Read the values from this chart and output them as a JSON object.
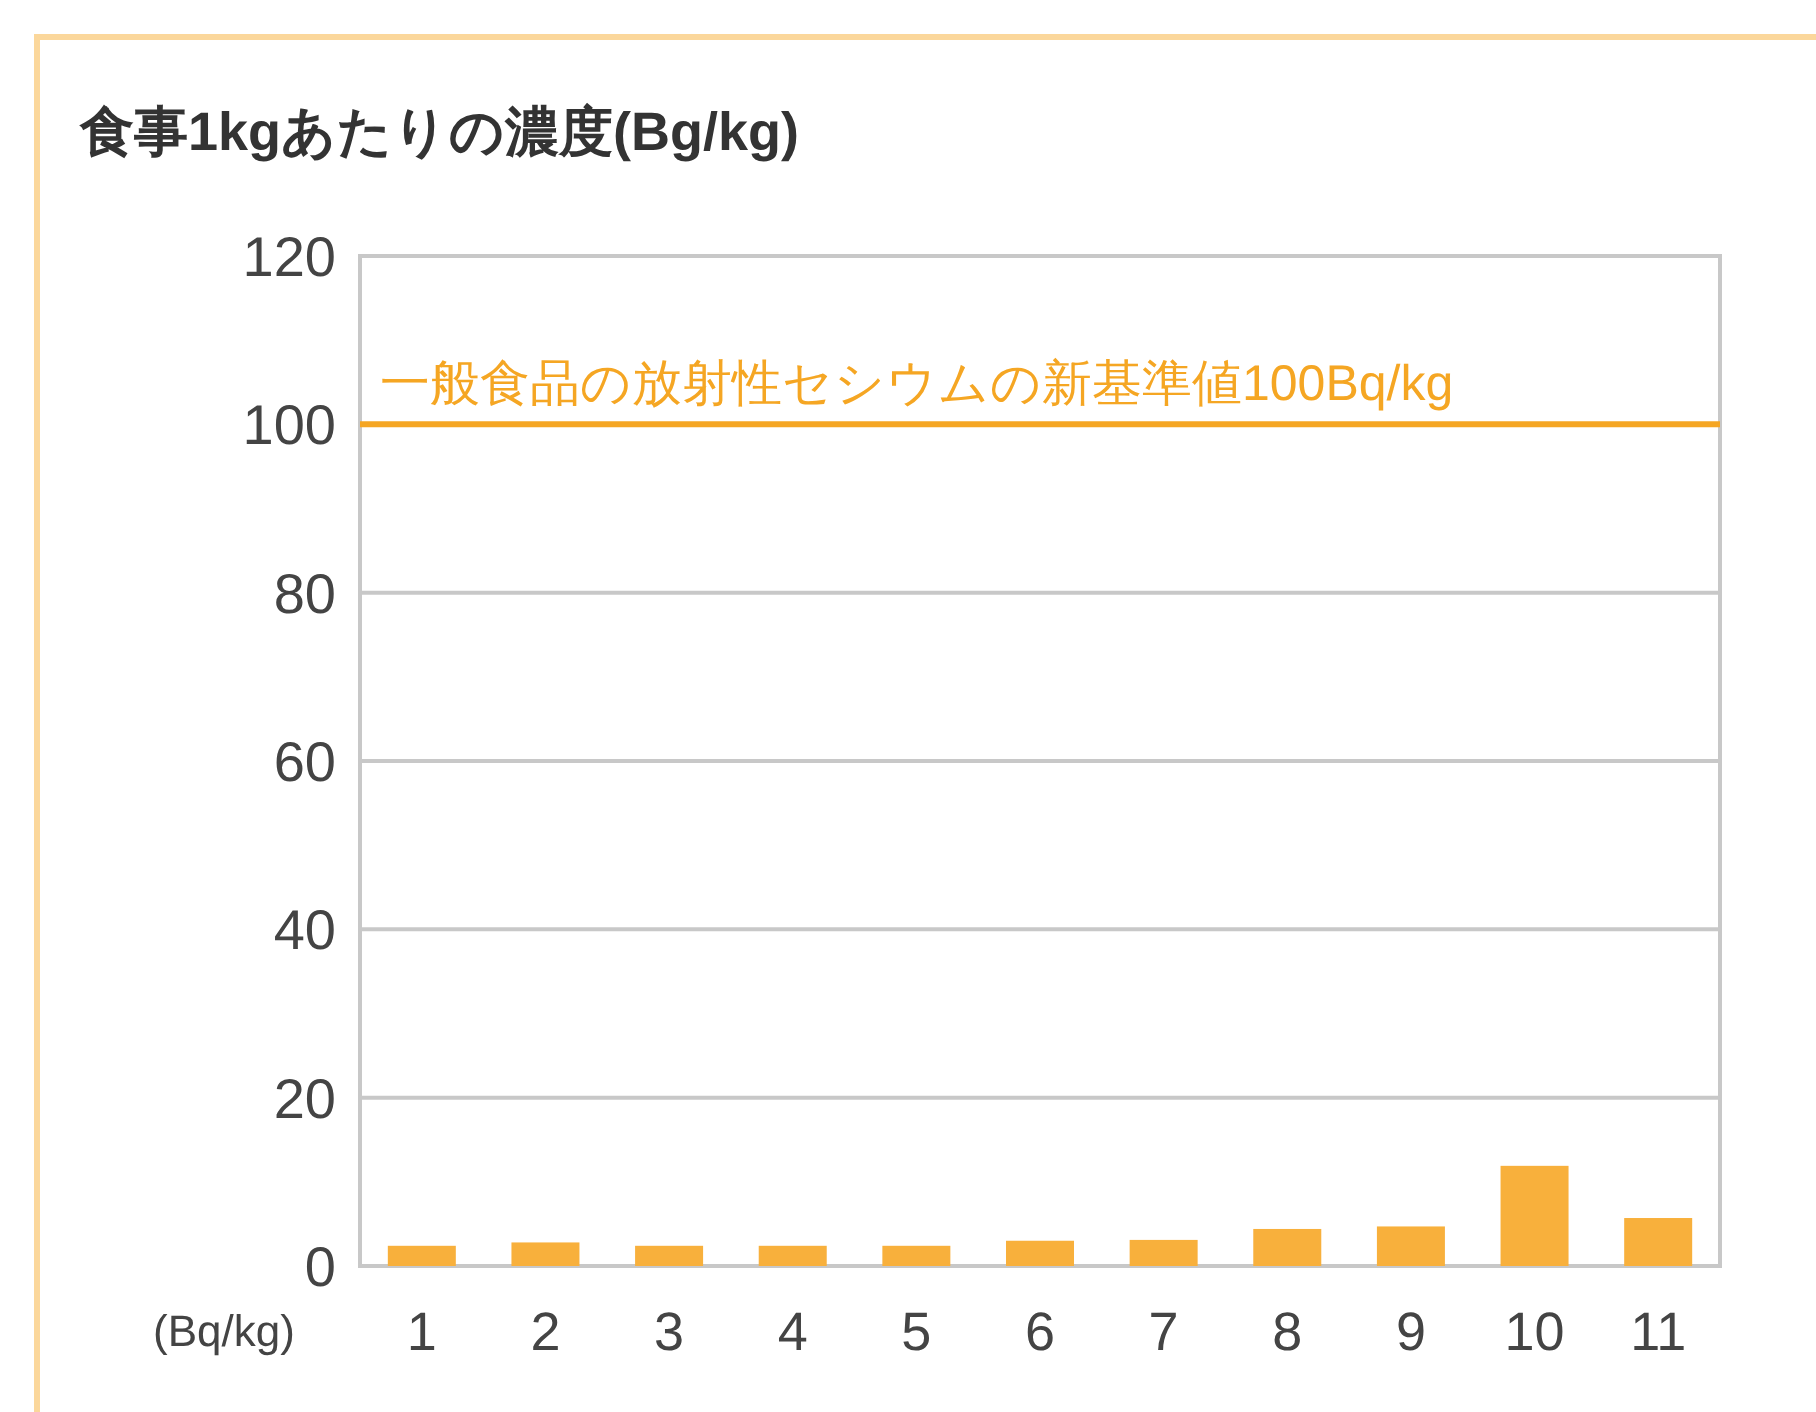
{
  "chart_data": {
    "type": "bar",
    "title": "食事1kgあたりの濃度(Bg/kg)",
    "ylabel": "(Bq/kg)",
    "categories": [
      "1",
      "2",
      "3",
      "4",
      "5",
      "6",
      "7",
      "8",
      "9",
      "10",
      "11"
    ],
    "values": [
      2.4,
      2.8,
      2.4,
      2.4,
      2.4,
      3.0,
      3.1,
      4.4,
      4.7,
      11.9,
      5.7
    ],
    "color": "#f8b03c",
    "ylim": [
      0,
      120
    ],
    "yticks": [
      0,
      20,
      40,
      60,
      80,
      100,
      120
    ],
    "grid": "y",
    "ref_lines": [
      {
        "axis": "y",
        "value": 100,
        "label": "一般食品の放射性セシウムの新基準値100Bq/kg",
        "color": "#f5a623"
      }
    ]
  }
}
